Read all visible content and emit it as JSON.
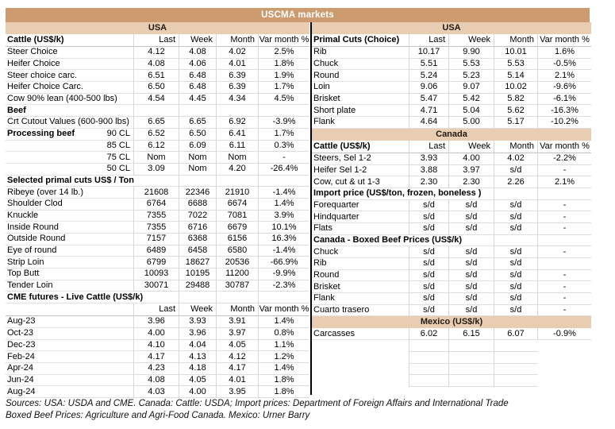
{
  "title": "USCMA markets",
  "colors": {
    "band_dark": "#cd9b70",
    "band_light": "#e9cdb2",
    "divider": "#000000",
    "grid_line": "#d6d6d6"
  },
  "columns": [
    "Last",
    "Week",
    "Month",
    "Var month %"
  ],
  "left_table": {
    "rows": [
      {
        "type": "band",
        "label": "USA"
      },
      {
        "type": "colheader",
        "label": "Cattle (US$/k)",
        "cells": [
          "Last",
          "Week",
          "Month",
          "Var month %"
        ]
      },
      {
        "type": "data",
        "label": "Steer Choice",
        "cells": [
          "4.12",
          "4.08",
          "4.02",
          "2.5%"
        ]
      },
      {
        "type": "data",
        "label": "Heifer Choice",
        "cells": [
          "4.08",
          "4.06",
          "4.01",
          "1.8%"
        ]
      },
      {
        "type": "data",
        "label": "Steer choice carc.",
        "cells": [
          "6.51",
          "6.48",
          "6.39",
          "1.9%"
        ]
      },
      {
        "type": "data",
        "label": "Heifer Choice Carc.",
        "cells": [
          "6.50",
          "6.48",
          "6.39",
          "1.7%"
        ]
      },
      {
        "type": "data",
        "label": "Cow 90% lean (400-500 lbs)",
        "cells": [
          "4.54",
          "4.45",
          "4.34",
          "4.5%"
        ]
      },
      {
        "type": "section",
        "label": "Beef",
        "span": 1
      },
      {
        "type": "data",
        "label": "Crt Cutout Values (600-900 lbs)",
        "cells": [
          "6.65",
          "6.65",
          "6.92",
          "-3.9%"
        ]
      },
      {
        "type": "data",
        "label": "Processing beef",
        "label_right": "90 CL",
        "bold_label": true,
        "cells": [
          "6.52",
          "6.50",
          "6.41",
          "1.7%"
        ]
      },
      {
        "type": "data",
        "label": "",
        "label_right": "85 CL",
        "cells": [
          "6.12",
          "6.09",
          "6.11",
          "0.3%"
        ]
      },
      {
        "type": "data",
        "label": "",
        "label_right": "75 CL",
        "cells": [
          "Nom",
          "Nom",
          "Nom",
          "-"
        ]
      },
      {
        "type": "data",
        "label": "",
        "label_right": "50 CL",
        "cells": [
          "3.09",
          "Nom",
          "4.20",
          "-26.4%"
        ]
      },
      {
        "type": "section",
        "label": "Selected primal cuts US$ / Ton",
        "span": 2
      },
      {
        "type": "data",
        "label": "Ribeye (over 14 lb.)",
        "cells": [
          "21608",
          "22346",
          "21910",
          "-1.4%"
        ]
      },
      {
        "type": "data",
        "label": "Shoulder Clod",
        "cells": [
          "6764",
          "6688",
          "6674",
          "1.4%"
        ]
      },
      {
        "type": "data",
        "label": "Knuckle",
        "cells": [
          "7355",
          "7022",
          "7081",
          "3.9%"
        ]
      },
      {
        "type": "data",
        "label": "Inside Round",
        "cells": [
          "7355",
          "6716",
          "6679",
          "10.1%"
        ]
      },
      {
        "type": "data",
        "label": "Outside Round",
        "cells": [
          "7157",
          "6368",
          "6156",
          "16.3%"
        ]
      },
      {
        "type": "data",
        "label": "Eye of round",
        "cells": [
          "6489",
          "6458",
          "6580",
          "-1.4%"
        ]
      },
      {
        "type": "data",
        "label": "Strip Loin",
        "cells": [
          "6799",
          "18627",
          "20536",
          "-66.9%"
        ]
      },
      {
        "type": "data",
        "label": "Top Butt",
        "cells": [
          "10093",
          "10195",
          "11200",
          "-9.9%"
        ]
      },
      {
        "type": "data",
        "label": "Tender Loin",
        "cells": [
          "30071",
          "29488",
          "30787",
          "-2.3%"
        ]
      },
      {
        "type": "section",
        "label": "CME futures - Live Cattle (US$/k)",
        "span": 2
      },
      {
        "type": "colheader",
        "label": "",
        "cells": [
          "Last",
          "Week",
          "Month",
          "Var month %"
        ]
      },
      {
        "type": "data",
        "label": "Aug-23",
        "cells": [
          "3.96",
          "3.93",
          "3.91",
          "1.4%"
        ]
      },
      {
        "type": "data",
        "label": "Oct-23",
        "cells": [
          "4.00",
          "3.96",
          "3.97",
          "0.8%"
        ]
      },
      {
        "type": "data",
        "label": "Dec-23",
        "cells": [
          "4.10",
          "4.04",
          "4.05",
          "1.1%"
        ]
      },
      {
        "type": "data",
        "label": "Feb-24",
        "cells": [
          "4.17",
          "4.13",
          "4.12",
          "1.2%"
        ]
      },
      {
        "type": "data",
        "label": "Apr-24",
        "cells": [
          "4.23",
          "4.18",
          "4.17",
          "1.4%"
        ]
      },
      {
        "type": "data",
        "label": "Jun-24",
        "cells": [
          "4.08",
          "4.05",
          "4.01",
          "1.8%"
        ]
      },
      {
        "type": "data",
        "label": "Aug-24",
        "cells": [
          "4.03",
          "4.00",
          "3.95",
          "1.8%"
        ]
      }
    ]
  },
  "right_table": {
    "rows": [
      {
        "type": "band",
        "label": "USA"
      },
      {
        "type": "colheader",
        "label": "Primal Cuts (Choice)",
        "cells": [
          "Last",
          "Week",
          "Month",
          "Var month %"
        ]
      },
      {
        "type": "data",
        "label": "Rib",
        "cells": [
          "10.17",
          "9.90",
          "10.01",
          "1.6%"
        ]
      },
      {
        "type": "data",
        "label": "Chuck",
        "cells": [
          "5.51",
          "5.53",
          "5.53",
          "-0.5%"
        ]
      },
      {
        "type": "data",
        "label": "Round",
        "cells": [
          "5.24",
          "5.23",
          "5.14",
          "2.1%"
        ]
      },
      {
        "type": "data",
        "label": "Loin",
        "cells": [
          "9.06",
          "9.07",
          "10.02",
          "-9.6%"
        ]
      },
      {
        "type": "data",
        "label": "Brisket",
        "cells": [
          "5.47",
          "5.42",
          "5.82",
          "-6.1%"
        ]
      },
      {
        "type": "data",
        "label": "Short plate",
        "cells": [
          "4.71",
          "5.04",
          "5.62",
          "-16.3%"
        ]
      },
      {
        "type": "data",
        "label": "Flank",
        "cells": [
          "4.64",
          "5.00",
          "5.17",
          "-10.2%"
        ]
      },
      {
        "type": "band",
        "label": "Canada"
      },
      {
        "type": "colheader",
        "label": "Cattle (US$/k)",
        "cells": [
          "Last",
          "Week",
          "Month",
          "Var month %"
        ]
      },
      {
        "type": "data",
        "label": "Steers, Sel 1-2",
        "cells": [
          "3.93",
          "4.00",
          "4.02",
          "-2.2%"
        ]
      },
      {
        "type": "data",
        "label": "Heifer Sel 1-2",
        "cells": [
          "3.88",
          "3.97",
          "s/d",
          "-"
        ]
      },
      {
        "type": "data",
        "label": "Cow, cut & ut 1-3",
        "cells": [
          "2.30",
          "2.30",
          "2.26",
          "2.1%"
        ]
      },
      {
        "type": "section",
        "label": "Import price (US$/ton, frozen, boneless )",
        "span": 3
      },
      {
        "type": "data",
        "label": "Forequarter",
        "cells": [
          "s/d",
          "s/d",
          "s/d",
          "-"
        ]
      },
      {
        "type": "data",
        "label": "Hindquarter",
        "cells": [
          "s/d",
          "s/d",
          "s/d",
          "-"
        ]
      },
      {
        "type": "data",
        "label": "Flats",
        "cells": [
          "s/d",
          "s/d",
          "s/d",
          "-"
        ]
      },
      {
        "type": "section",
        "label": "Canada - Boxed Beef Prices (US$/k)",
        "span": 3
      },
      {
        "type": "data",
        "label": "Chuck",
        "cells": [
          "s/d",
          "s/d",
          "s/d",
          "-"
        ]
      },
      {
        "type": "data",
        "label": "Rib",
        "cells": [
          "s/d",
          "s/d",
          "s/d",
          ""
        ]
      },
      {
        "type": "data",
        "label": "Round",
        "cells": [
          "s/d",
          "s/d",
          "s/d",
          "-"
        ]
      },
      {
        "type": "data",
        "label": "Brisket",
        "cells": [
          "s/d",
          "s/d",
          "s/d",
          "-"
        ]
      },
      {
        "type": "data",
        "label": "Flank",
        "cells": [
          "s/d",
          "s/d",
          "s/d",
          "-"
        ]
      },
      {
        "type": "data",
        "label": "Cuarto trasero",
        "cells": [
          "s/d",
          "s/d",
          "s/d",
          "-"
        ]
      },
      {
        "type": "band",
        "label": "Mexico (US$/k)"
      },
      {
        "type": "data",
        "label": "Carcasses",
        "cells": [
          "6.02",
          "6.15",
          "6.07",
          "-0.9%"
        ]
      },
      {
        "type": "empty"
      },
      {
        "type": "empty"
      },
      {
        "type": "empty"
      },
      {
        "type": "empty"
      }
    ]
  },
  "footer": {
    "line1": "Sources: USA: USDA and CME. Canada: Cattle: USDA; Import prices: Department of Foreign Affairs and International Trade",
    "line2": "Boxed Beef Prices: Agriculture and Agri-Food Canada. Mexico: Urner Barry"
  }
}
